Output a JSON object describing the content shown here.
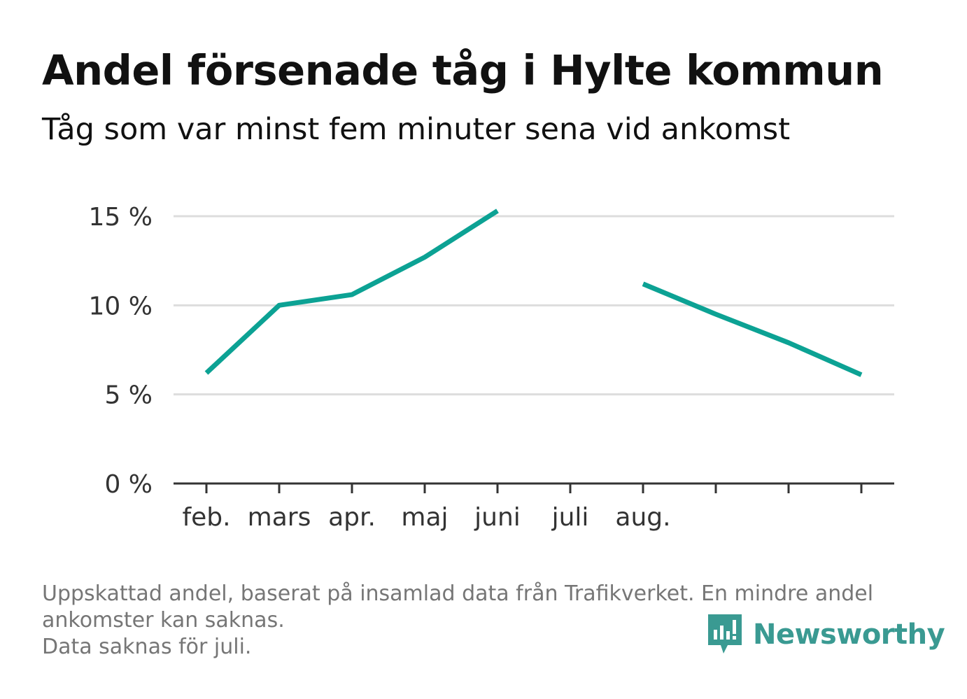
{
  "header": {
    "title": "Andel försenade tåg i Hylte kommun",
    "subtitle": "Tåg som var minst fem minuter sena vid ankomst"
  },
  "footnote": {
    "lines": [
      "Uppskattad andel, baserat på insamlad data från Trafikverket. En mindre andel",
      "ankomster kan saknas.",
      "Data saknas för juli."
    ]
  },
  "brand": {
    "name": "Newsworthy",
    "icon": "newsworthy-logo-icon",
    "color": "#3a9a92"
  },
  "chart_data": {
    "type": "line",
    "title": "Andel försenade tåg i Hylte kommun",
    "subtitle": "Tåg som var minst fem minuter sena vid ankomst",
    "xlabel": "",
    "ylabel": "",
    "categories": [
      "feb.",
      "mars",
      "apr.",
      "maj",
      "juni",
      "juli",
      "aug.",
      "",
      "",
      ""
    ],
    "series": [
      {
        "color": "#0ca294",
        "values": [
          6.2,
          10.0,
          10.6,
          12.7,
          15.3,
          null,
          11.2,
          9.5,
          7.9,
          6.1
        ]
      }
    ],
    "ylim": [
      0,
      15
    ],
    "yticks": [
      0,
      5,
      10,
      15
    ],
    "ytick_labels": [
      "0 %",
      "5 %",
      "10 %",
      "15 %"
    ],
    "grid": true
  }
}
